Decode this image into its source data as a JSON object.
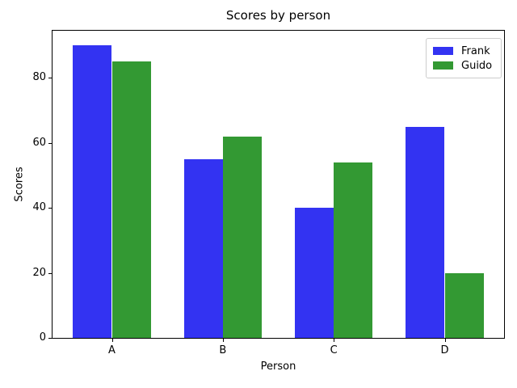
{
  "chart_data": {
    "type": "bar",
    "title": "Scores by person",
    "xlabel": "Person",
    "ylabel": "Scores",
    "categories": [
      "A",
      "B",
      "C",
      "D"
    ],
    "series": [
      {
        "name": "Frank",
        "color": "#3333f2",
        "values": [
          90,
          55,
          40,
          65
        ]
      },
      {
        "name": "Guido",
        "color": "#339933",
        "values": [
          85,
          62,
          54,
          20
        ]
      }
    ],
    "bar_width": 0.35,
    "xlim": [
      -0.36,
      3.71
    ],
    "ylim": [
      0,
      94.5
    ],
    "yticks": [
      0,
      20,
      40,
      60,
      80
    ],
    "grid": false,
    "legend": {
      "position": "upper-right",
      "entries": [
        "Frank",
        "Guido"
      ]
    },
    "colors": {
      "axis": "#000000",
      "background": "#ffffff",
      "legend_border": "#cccccc"
    }
  }
}
